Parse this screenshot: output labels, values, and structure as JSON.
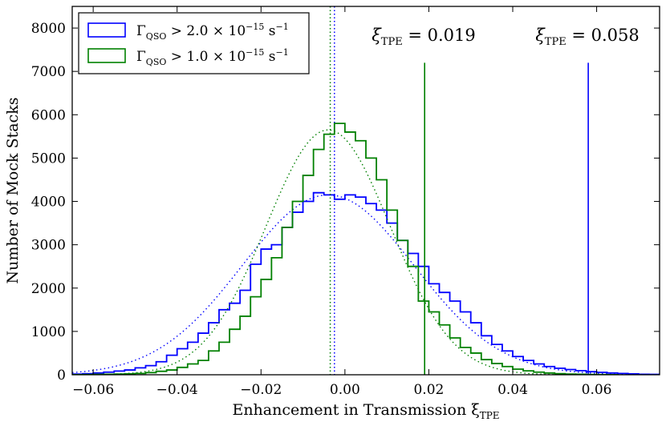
{
  "chart_data": {
    "type": "histogram",
    "xlabel": "Enhancement in Transmission ξ",
    "xlabel_sub": "TPE",
    "ylabel": "Number of Mock Stacks",
    "xlim": [
      -0.065,
      0.075
    ],
    "ylim": [
      0,
      8500
    ],
    "xticks": [
      -0.06,
      -0.04,
      -0.02,
      0.0,
      0.02,
      0.04,
      0.06
    ],
    "xtick_labels": [
      "−0.06",
      "−0.04",
      "−0.02",
      "0.00",
      "0.02",
      "0.04",
      "0.06"
    ],
    "yticks": [
      0,
      1000,
      2000,
      3000,
      4000,
      5000,
      6000,
      7000,
      8000
    ],
    "ytick_labels": [
      "0",
      "1000",
      "2000",
      "3000",
      "4000",
      "5000",
      "6000",
      "7000",
      "8000"
    ],
    "bin_width": 0.0025,
    "legend_position": "top-left",
    "series": [
      {
        "name": "Γ_QSO > 2.0 × 10^-15 s^-1",
        "legend_symbol": "Γ",
        "legend_sub": "QSO",
        "legend_expr": " > 2.0 × 10",
        "legend_exp": "−15",
        "legend_unit": " s",
        "legend_unit_exp": "−1",
        "color": "#0000ff",
        "fit_mean": -0.004,
        "fit_sigma": 0.0205,
        "fit_amp": 4150,
        "median": -0.0025,
        "observed_xi": 0.058,
        "observed_label": "ξ",
        "observed_sub": "TPE",
        "observed_value_text": " = 0.058",
        "bins": [
          {
            "x": -0.065,
            "count": 15
          },
          {
            "x": -0.0625,
            "count": 25
          },
          {
            "x": -0.06,
            "count": 40
          },
          {
            "x": -0.0575,
            "count": 60
          },
          {
            "x": -0.055,
            "count": 85
          },
          {
            "x": -0.0525,
            "count": 110
          },
          {
            "x": -0.05,
            "count": 160
          },
          {
            "x": -0.0475,
            "count": 210
          },
          {
            "x": -0.045,
            "count": 300
          },
          {
            "x": -0.0425,
            "count": 450
          },
          {
            "x": -0.04,
            "count": 600
          },
          {
            "x": -0.0375,
            "count": 750
          },
          {
            "x": -0.035,
            "count": 960
          },
          {
            "x": -0.0325,
            "count": 1200
          },
          {
            "x": -0.03,
            "count": 1500
          },
          {
            "x": -0.0275,
            "count": 1650
          },
          {
            "x": -0.025,
            "count": 1950
          },
          {
            "x": -0.0225,
            "count": 2550
          },
          {
            "x": -0.02,
            "count": 2900
          },
          {
            "x": -0.0175,
            "count": 3000
          },
          {
            "x": -0.015,
            "count": 3400
          },
          {
            "x": -0.0125,
            "count": 3750
          },
          {
            "x": -0.01,
            "count": 4000
          },
          {
            "x": -0.0075,
            "count": 4200
          },
          {
            "x": -0.005,
            "count": 4150
          },
          {
            "x": -0.0025,
            "count": 4050
          },
          {
            "x": 0.0,
            "count": 4150
          },
          {
            "x": 0.0025,
            "count": 4100
          },
          {
            "x": 0.005,
            "count": 3950
          },
          {
            "x": 0.0075,
            "count": 3800
          },
          {
            "x": 0.01,
            "count": 3500
          },
          {
            "x": 0.0125,
            "count": 3100
          },
          {
            "x": 0.015,
            "count": 2800
          },
          {
            "x": 0.0175,
            "count": 2500
          },
          {
            "x": 0.02,
            "count": 2100
          },
          {
            "x": 0.0225,
            "count": 1900
          },
          {
            "x": 0.025,
            "count": 1700
          },
          {
            "x": 0.0275,
            "count": 1450
          },
          {
            "x": 0.03,
            "count": 1200
          },
          {
            "x": 0.0325,
            "count": 900
          },
          {
            "x": 0.035,
            "count": 700
          },
          {
            "x": 0.0375,
            "count": 550
          },
          {
            "x": 0.04,
            "count": 420
          },
          {
            "x": 0.0425,
            "count": 330
          },
          {
            "x": 0.045,
            "count": 250
          },
          {
            "x": 0.0475,
            "count": 190
          },
          {
            "x": 0.05,
            "count": 150
          },
          {
            "x": 0.0525,
            "count": 120
          },
          {
            "x": 0.055,
            "count": 95
          },
          {
            "x": 0.0575,
            "count": 70
          },
          {
            "x": 0.06,
            "count": 55
          },
          {
            "x": 0.0625,
            "count": 40
          },
          {
            "x": 0.065,
            "count": 30
          },
          {
            "x": 0.0675,
            "count": 20
          },
          {
            "x": 0.07,
            "count": 12
          },
          {
            "x": 0.0725,
            "count": 8
          }
        ]
      },
      {
        "name": "Γ_QSO > 1.0 × 10^-15 s^-1",
        "legend_symbol": "Γ",
        "legend_sub": "QSO",
        "legend_expr": " > 1.0 × 10",
        "legend_exp": "−15",
        "legend_unit": " s",
        "legend_unit_exp": "−1",
        "color": "#008000",
        "fit_mean": -0.004,
        "fit_sigma": 0.0148,
        "fit_amp": 5650,
        "median": -0.0035,
        "observed_xi": 0.019,
        "observed_label": "ξ",
        "observed_sub": "TPE",
        "observed_value_text": " = 0.019",
        "bins": [
          {
            "x": -0.065,
            "count": 3
          },
          {
            "x": -0.0625,
            "count": 5
          },
          {
            "x": -0.06,
            "count": 8
          },
          {
            "x": -0.0575,
            "count": 10
          },
          {
            "x": -0.055,
            "count": 15
          },
          {
            "x": -0.0525,
            "count": 20
          },
          {
            "x": -0.05,
            "count": 30
          },
          {
            "x": -0.0475,
            "count": 50
          },
          {
            "x": -0.045,
            "count": 80
          },
          {
            "x": -0.0425,
            "count": 110
          },
          {
            "x": -0.04,
            "count": 170
          },
          {
            "x": -0.0375,
            "count": 250
          },
          {
            "x": -0.035,
            "count": 330
          },
          {
            "x": -0.0325,
            "count": 550
          },
          {
            "x": -0.03,
            "count": 750
          },
          {
            "x": -0.0275,
            "count": 1050
          },
          {
            "x": -0.025,
            "count": 1350
          },
          {
            "x": -0.0225,
            "count": 1800
          },
          {
            "x": -0.02,
            "count": 2200
          },
          {
            "x": -0.0175,
            "count": 2700
          },
          {
            "x": -0.015,
            "count": 3400
          },
          {
            "x": -0.0125,
            "count": 4000
          },
          {
            "x": -0.01,
            "count": 4600
          },
          {
            "x": -0.0075,
            "count": 5200
          },
          {
            "x": -0.005,
            "count": 5550
          },
          {
            "x": -0.0025,
            "count": 5800
          },
          {
            "x": 0.0,
            "count": 5600
          },
          {
            "x": 0.0025,
            "count": 5400
          },
          {
            "x": 0.005,
            "count": 5000
          },
          {
            "x": 0.0075,
            "count": 4500
          },
          {
            "x": 0.01,
            "count": 3800
          },
          {
            "x": 0.0125,
            "count": 3100
          },
          {
            "x": 0.015,
            "count": 2500
          },
          {
            "x": 0.0175,
            "count": 1700
          },
          {
            "x": 0.02,
            "count": 1450
          },
          {
            "x": 0.0225,
            "count": 1150
          },
          {
            "x": 0.025,
            "count": 850
          },
          {
            "x": 0.0275,
            "count": 630
          },
          {
            "x": 0.03,
            "count": 500
          },
          {
            "x": 0.0325,
            "count": 350
          },
          {
            "x": 0.035,
            "count": 260
          },
          {
            "x": 0.0375,
            "count": 190
          },
          {
            "x": 0.04,
            "count": 130
          },
          {
            "x": 0.0425,
            "count": 90
          },
          {
            "x": 0.045,
            "count": 60
          },
          {
            "x": 0.0475,
            "count": 40
          },
          {
            "x": 0.05,
            "count": 25
          },
          {
            "x": 0.0525,
            "count": 15
          },
          {
            "x": 0.055,
            "count": 10
          },
          {
            "x": 0.0575,
            "count": 6
          },
          {
            "x": 0.06,
            "count": 4
          },
          {
            "x": 0.0625,
            "count": 3
          }
        ]
      }
    ]
  }
}
